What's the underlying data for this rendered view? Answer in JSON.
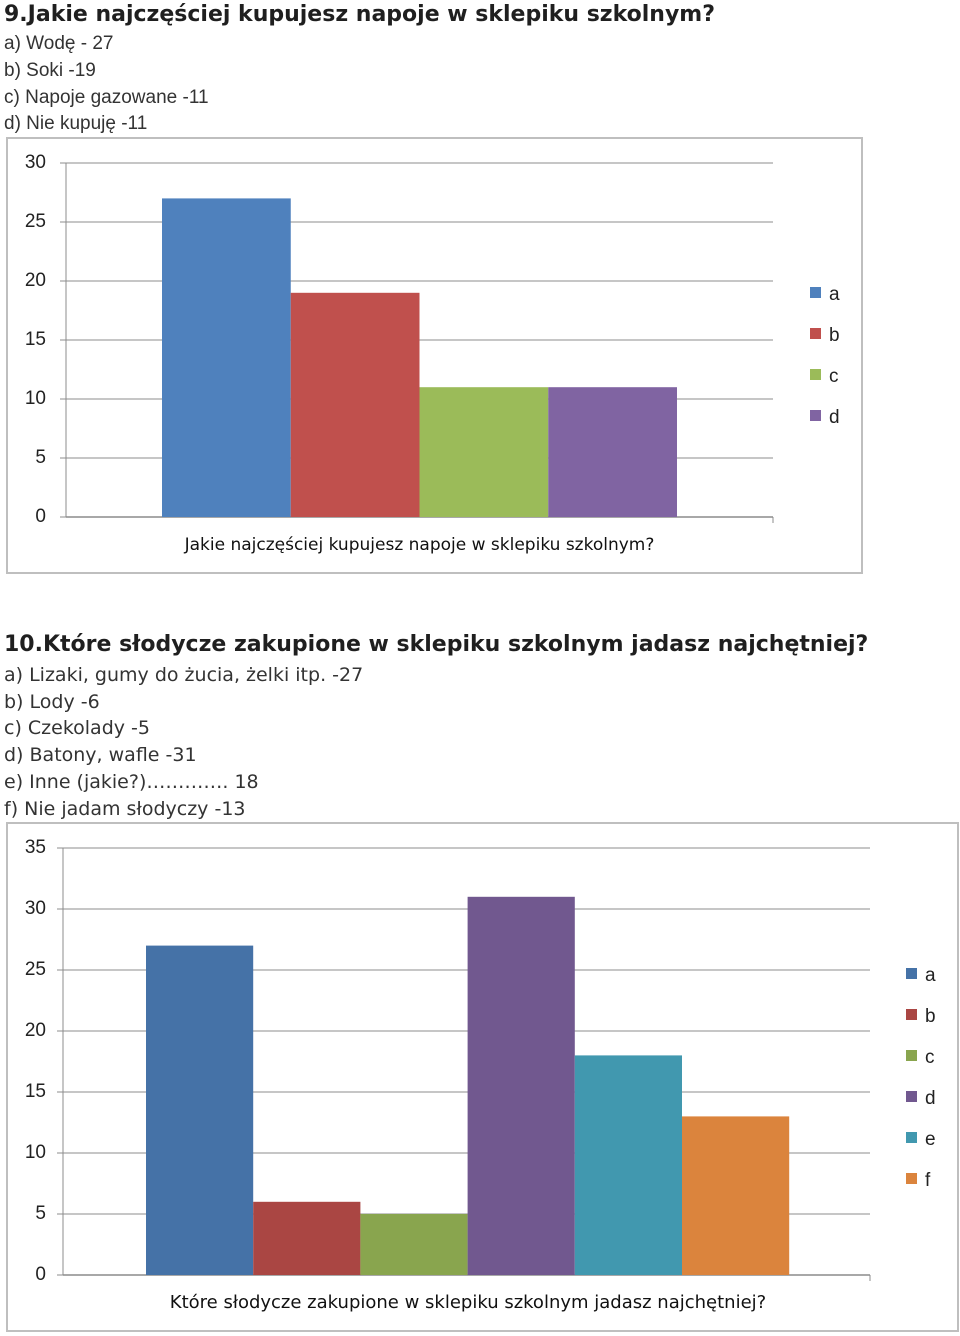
{
  "question9": {
    "title": "9.Jakie najczęściej kupujesz napoje w sklepiku szkolnym?",
    "answers": [
      "a) Wodę - 27",
      "b) Soki -19",
      "c) Napoje gazowane -11",
      "d) Nie kupuję -11"
    ]
  },
  "question10": {
    "title": "10.Które słodycze zakupione w sklepiku szkolnym jadasz najchętniej?",
    "answers": [
      "a) Lizaki, gumy do żucia, żelki itp. -27",
      "b) Lody -6",
      "c) Czekolady -5",
      "d) Batony, wafle -31",
      "e) Inne (jakie?)…………. 18",
      "f) Nie jadam słodyczy -13"
    ]
  },
  "chart_data": [
    {
      "type": "bar",
      "categories": [
        "Jakie najczęściej kupujesz napoje w sklepiku szkolnym?"
      ],
      "series": [
        {
          "name": "a",
          "values": [
            27
          ],
          "color": "#4F81BD"
        },
        {
          "name": "b",
          "values": [
            19
          ],
          "color": "#C0504D"
        },
        {
          "name": "c",
          "values": [
            11
          ],
          "color": "#9BBB59"
        },
        {
          "name": "d",
          "values": [
            11
          ],
          "color": "#8064A2"
        }
      ],
      "ylim": [
        0,
        30
      ],
      "yticks": [
        "0",
        "5",
        "10",
        "15",
        "20",
        "25",
        "30"
      ],
      "grid": true,
      "legend": "right"
    },
    {
      "type": "bar",
      "categories": [
        "Które słodycze zakupione w sklepiku szkolnym jadasz najchętniej?"
      ],
      "series": [
        {
          "name": "a",
          "values": [
            27
          ],
          "color": "#4572A7"
        },
        {
          "name": "b",
          "values": [
            6
          ],
          "color": "#AA4643"
        },
        {
          "name": "c",
          "values": [
            5
          ],
          "color": "#89A54E"
        },
        {
          "name": "d",
          "values": [
            31
          ],
          "color": "#71588F"
        },
        {
          "name": "e",
          "values": [
            18
          ],
          "color": "#4198AF"
        },
        {
          "name": "f",
          "values": [
            13
          ],
          "color": "#DB843D"
        }
      ],
      "ylim": [
        0,
        35
      ],
      "yticks": [
        "0",
        "5",
        "10",
        "15",
        "20",
        "25",
        "30",
        "35"
      ],
      "grid": true,
      "legend": "right"
    }
  ]
}
